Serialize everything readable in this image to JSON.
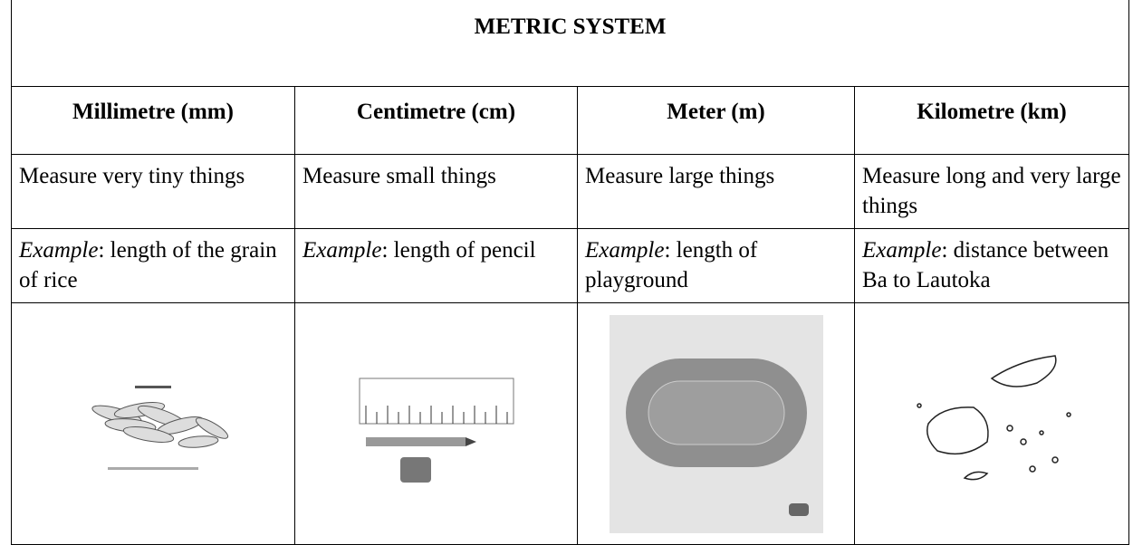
{
  "title": "METRIC SYSTEM",
  "headers": [
    "Millimetre (mm)",
    "Centimetre (cm)",
    "Meter (m)",
    "Kilometre (km)"
  ],
  "descriptions": [
    "Measure very tiny things",
    "Measure small things",
    "Measure large things",
    "Measure long and very large things"
  ],
  "examples": [
    {
      "label": "Example",
      "text": ": length of the grain of rice"
    },
    {
      "label": "Example",
      "text": ": length of pencil"
    },
    {
      "label": "Example",
      "text": ": length of playground"
    },
    {
      "label": "Example",
      "text": ": distance between Ba to Lautoka"
    }
  ]
}
